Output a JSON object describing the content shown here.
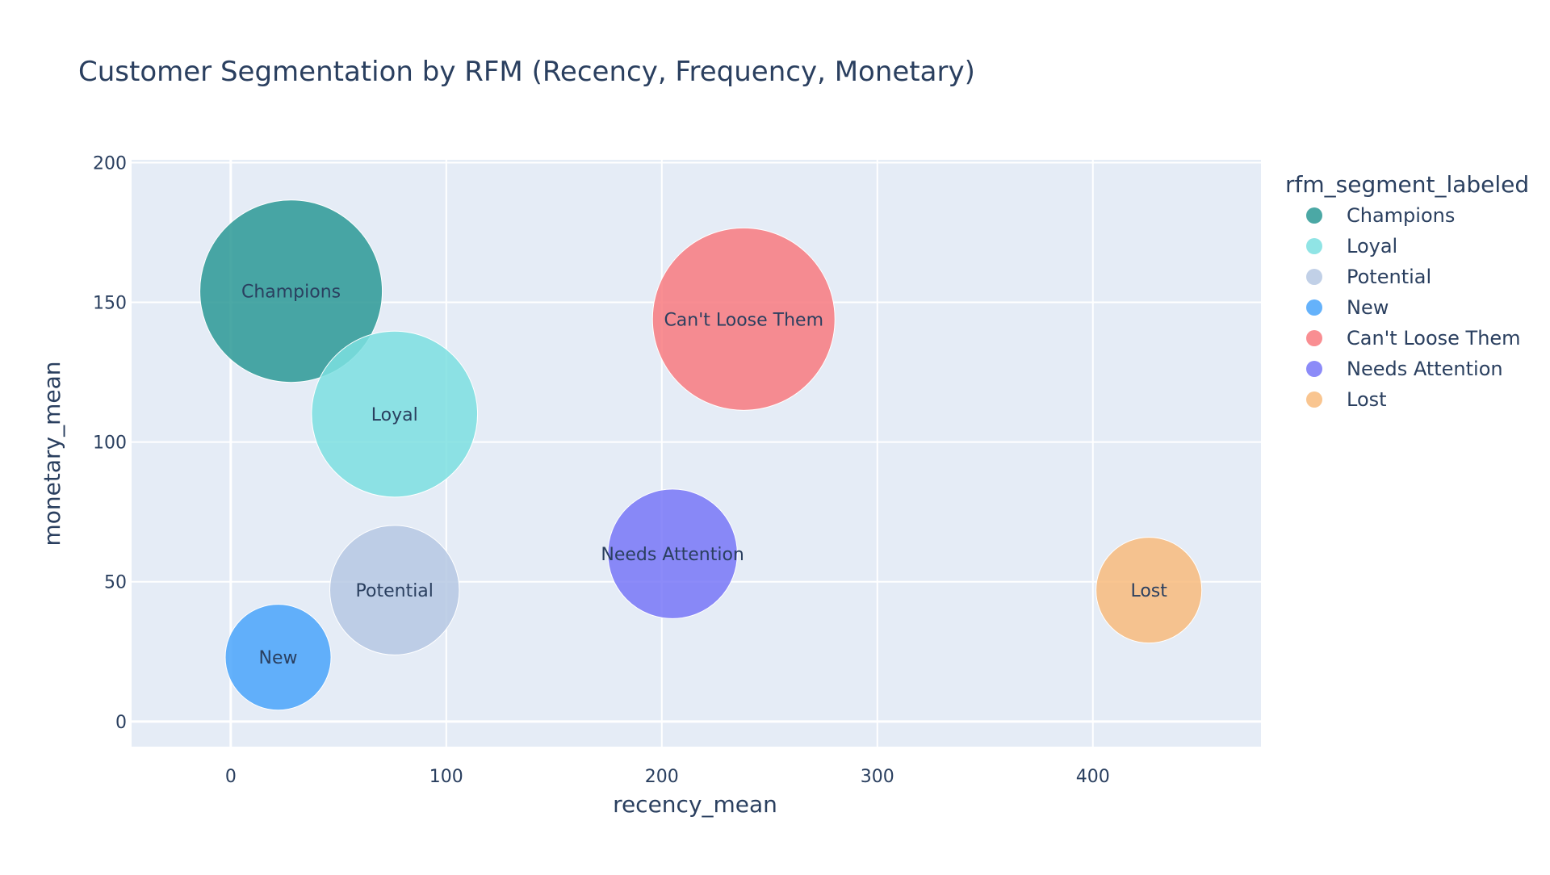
{
  "chart_data": {
    "type": "scatter",
    "title": "Customer Segmentation by RFM (Recency, Frequency, Monetary)",
    "xlabel": "recency_mean",
    "ylabel": "monetary_mean",
    "xlim": [
      -46,
      478
    ],
    "ylim": [
      -9,
      201
    ],
    "xticks": [
      0,
      100,
      200,
      300,
      400
    ],
    "yticks": [
      0,
      50,
      100,
      150,
      200
    ],
    "grid": true,
    "legend": {
      "title": "rfm_segment_labeled",
      "position": "right"
    },
    "series": [
      {
        "name": "Champions",
        "color": "#2b9995",
        "x": 28,
        "y": 154,
        "size": 1.0,
        "label": "Champions"
      },
      {
        "name": "Loyal",
        "color": "#7ddfe1",
        "x": 76,
        "y": 110,
        "size": 0.91,
        "label": "Loyal"
      },
      {
        "name": "Potential",
        "color": "#b6c8e3",
        "x": 76,
        "y": 47,
        "size": 0.71,
        "label": "Potential"
      },
      {
        "name": "New",
        "color": "#4aa5fa",
        "x": 22,
        "y": 23,
        "size": 0.58,
        "label": "New"
      },
      {
        "name": "Can't Loose Them",
        "color": "#f87a7f",
        "x": 238,
        "y": 144,
        "size": 1.0,
        "label": "Can't Loose Them"
      },
      {
        "name": "Needs Attention",
        "color": "#7877f7",
        "x": 205,
        "y": 60,
        "size": 0.71,
        "label": "Needs Attention"
      },
      {
        "name": "Lost",
        "color": "#f8bb7d",
        "x": 426,
        "y": 47,
        "size": 0.58,
        "label": "Lost"
      }
    ]
  }
}
